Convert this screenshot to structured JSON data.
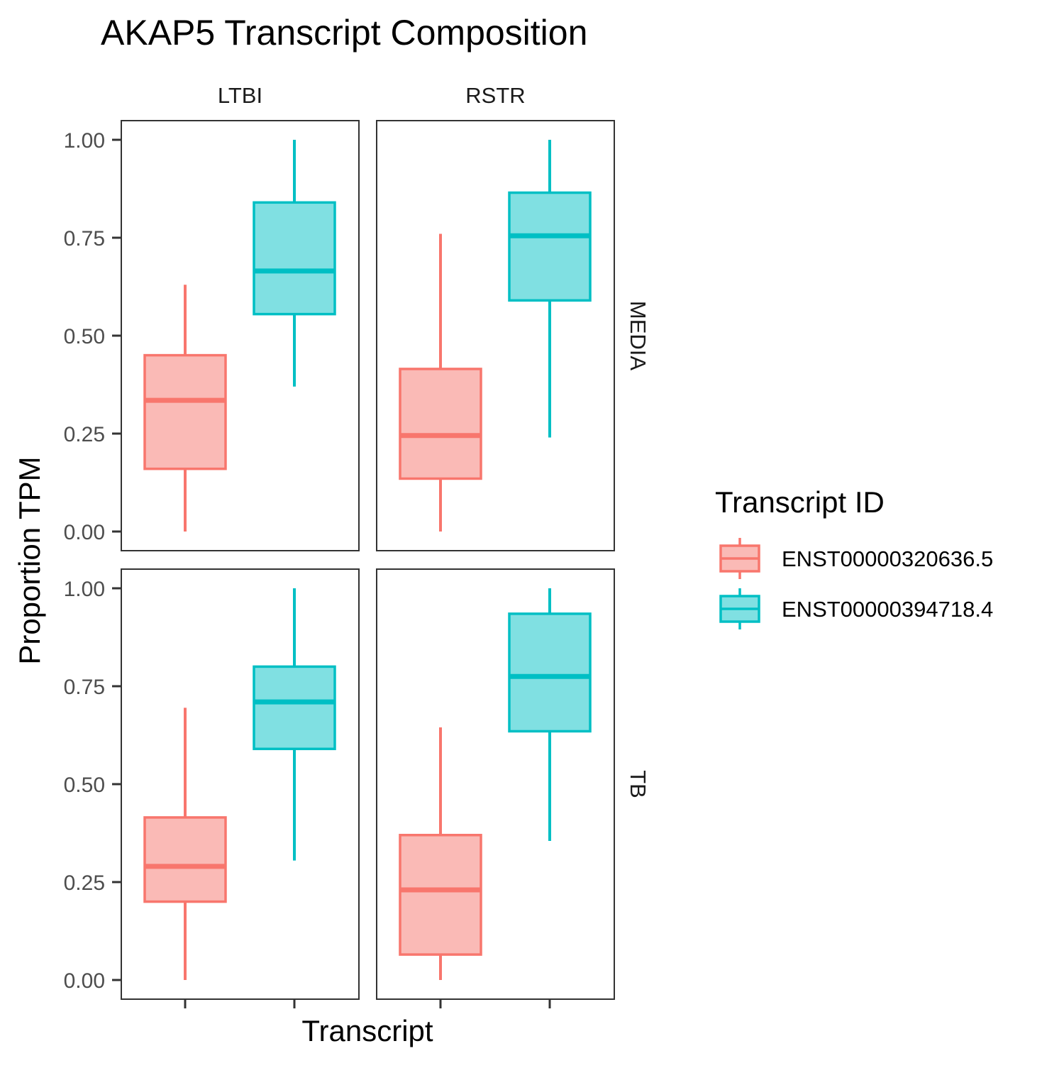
{
  "chart_data": {
    "type": "box",
    "title": "AKAP5 Transcript Composition",
    "xlabel": "Transcript",
    "ylabel": "Proportion TPM",
    "ylim": [
      0,
      1
    ],
    "yticks": [
      "0.00",
      "0.25",
      "0.50",
      "0.75",
      "1.00"
    ],
    "ytick_values": [
      0,
      0.25,
      0.5,
      0.75,
      1.0
    ],
    "facet_cols": [
      "LTBI",
      "RSTR"
    ],
    "facet_rows": [
      "MEDIA",
      "TB"
    ],
    "grid": false,
    "legend_position": "right",
    "legend": {
      "title": "Transcript ID",
      "entries": [
        "ENST00000320636.5",
        "ENST00000394718.4"
      ]
    },
    "series": [
      {
        "name": "ENST00000320636.5",
        "color": "#F8766D",
        "fill": "#FABAB6"
      },
      {
        "name": "ENST00000394718.4",
        "color": "#00BFC4",
        "fill": "#80E0E2"
      }
    ],
    "panels": [
      {
        "col": "LTBI",
        "row": "MEDIA",
        "boxes": [
          {
            "series": "ENST00000320636.5",
            "min": 0.0,
            "q1": 0.16,
            "median": 0.335,
            "q3": 0.45,
            "max": 0.63
          },
          {
            "series": "ENST00000394718.4",
            "min": 0.37,
            "q1": 0.555,
            "median": 0.665,
            "q3": 0.84,
            "max": 1.0
          }
        ]
      },
      {
        "col": "RSTR",
        "row": "MEDIA",
        "boxes": [
          {
            "series": "ENST00000320636.5",
            "min": 0.0,
            "q1": 0.135,
            "median": 0.245,
            "q3": 0.415,
            "max": 0.76
          },
          {
            "series": "ENST00000394718.4",
            "min": 0.24,
            "q1": 0.59,
            "median": 0.755,
            "q3": 0.865,
            "max": 1.0
          }
        ]
      },
      {
        "col": "LTBI",
        "row": "TB",
        "boxes": [
          {
            "series": "ENST00000320636.5",
            "min": 0.0,
            "q1": 0.2,
            "median": 0.29,
            "q3": 0.415,
            "max": 0.695
          },
          {
            "series": "ENST00000394718.4",
            "min": 0.305,
            "q1": 0.59,
            "median": 0.71,
            "q3": 0.8,
            "max": 1.0
          }
        ]
      },
      {
        "col": "RSTR",
        "row": "TB",
        "boxes": [
          {
            "series": "ENST00000320636.5",
            "min": 0.0,
            "q1": 0.065,
            "median": 0.23,
            "q3": 0.37,
            "max": 0.645
          },
          {
            "series": "ENST00000394718.4",
            "min": 0.355,
            "q1": 0.635,
            "median": 0.775,
            "q3": 0.935,
            "max": 1.0
          }
        ]
      }
    ]
  }
}
